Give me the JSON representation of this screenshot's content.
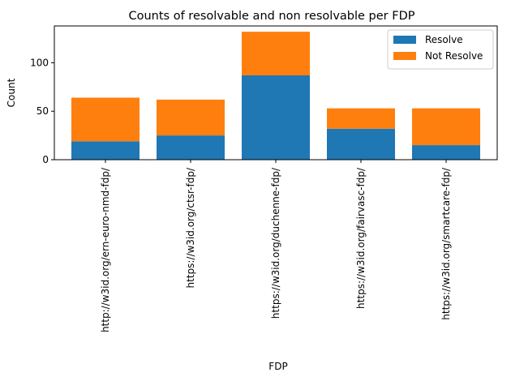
{
  "chart_data": {
    "type": "bar",
    "stacked": true,
    "title": "Counts of resolvable and non resolvable per FDP",
    "xlabel": "FDP",
    "ylabel": "Count",
    "categories": [
      "http://w3id.org/ern-euro-nmd-fdp/",
      "https://w3id.org/ctsr-fdp/",
      "https://w3id.org/duchenne-fdp/",
      "https://w3id.org/fairvasc-fdp/",
      "https://w3id.org/smartcare-fdp/"
    ],
    "series": [
      {
        "name": "Resolve",
        "values": [
          19,
          25,
          87,
          32,
          15
        ],
        "color": "#1f77b4"
      },
      {
        "name": "Not Resolve",
        "values": [
          45,
          37,
          45,
          21,
          38
        ],
        "color": "#ff7f0e"
      }
    ],
    "ylim": [
      0,
      138
    ],
    "yticks": [
      0,
      50,
      100
    ],
    "grid": false,
    "legend_position": "top-right"
  }
}
